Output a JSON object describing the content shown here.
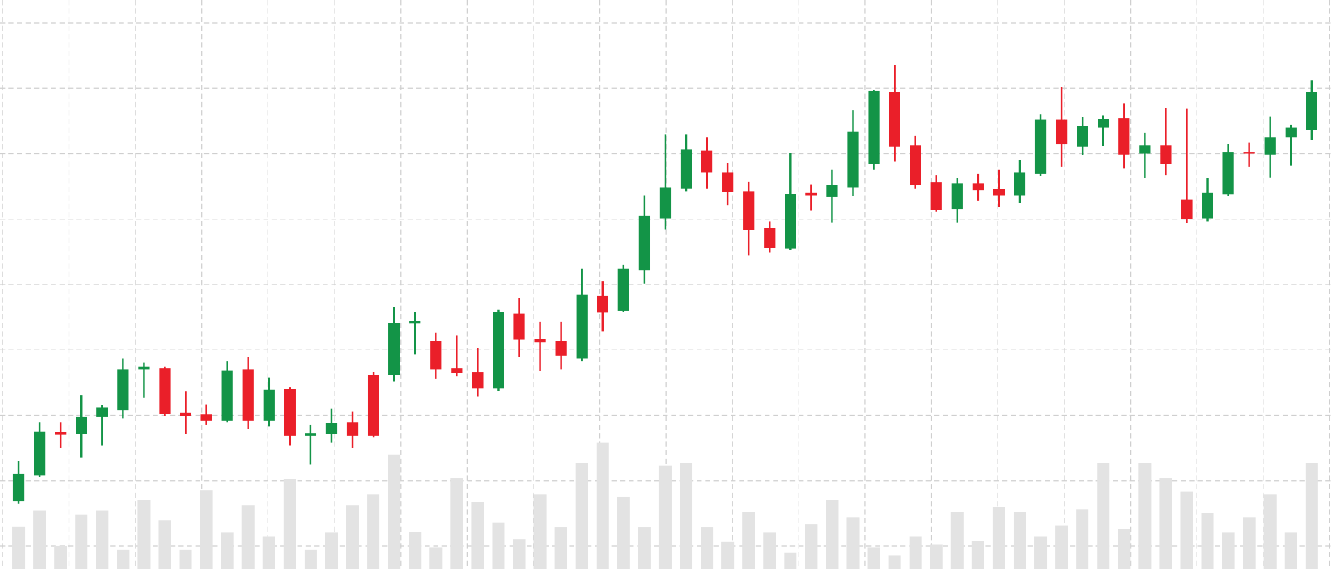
{
  "chart_data": {
    "type": "candlestick",
    "open": [
      80,
      110,
      161,
      159,
      179,
      187,
      235,
      236,
      184,
      182,
      175,
      235,
      175,
      212,
      157,
      159,
      173,
      228,
      228,
      289,
      268,
      236,
      232,
      213,
      301,
      271,
      268,
      248,
      322,
      304,
      352,
      413,
      448,
      493,
      467,
      445,
      402,
      377,
      443,
      438,
      449,
      477,
      562,
      499,
      455,
      424,
      454,
      447,
      440,
      465,
      529,
      497,
      520,
      531,
      489,
      499,
      435,
      413,
      441,
      491,
      488,
      508,
      517
    ],
    "high": [
      127,
      173,
      173,
      205,
      193,
      248,
      243,
      238,
      209,
      194,
      245,
      250,
      225,
      214,
      170,
      189,
      185,
      232,
      308,
      303,
      278,
      275,
      260,
      305,
      319,
      291,
      291,
      354,
      339,
      358,
      440,
      512,
      512,
      508,
      478,
      456,
      409,
      490,
      453,
      470,
      540,
      564,
      594,
      510,
      464,
      460,
      465,
      470,
      482,
      535,
      567,
      532,
      534,
      548,
      514,
      543,
      542,
      460,
      500,
      502,
      533,
      523,
      575
    ],
    "low": [
      77,
      108,
      143,
      131,
      145,
      177,
      202,
      180,
      159,
      170,
      173,
      165,
      168,
      145,
      123,
      149,
      143,
      155,
      221,
      253,
      224,
      227,
      203,
      210,
      250,
      233,
      235,
      245,
      280,
      303,
      336,
      400,
      445,
      448,
      428,
      369,
      373,
      375,
      422,
      408,
      439,
      470,
      480,
      448,
      421,
      408,
      434,
      426,
      431,
      463,
      474,
      487,
      498,
      472,
      460,
      464,
      407,
      409,
      439,
      474,
      461,
      475,
      505
    ],
    "close": [
      112,
      162,
      158,
      179,
      190,
      235,
      238,
      183,
      180,
      175,
      234,
      175,
      211,
      157,
      160,
      172,
      157,
      157,
      290,
      292,
      235,
      231,
      213,
      303,
      270,
      267,
      251,
      323,
      302,
      354,
      416,
      449,
      494,
      467,
      444,
      399,
      378,
      442,
      440,
      452,
      515,
      563,
      497,
      452,
      423,
      454,
      446,
      440,
      467,
      529,
      500,
      522,
      530,
      488,
      499,
      477,
      412,
      443,
      491,
      489,
      508,
      520,
      562
    ],
    "volume": [
      50,
      69,
      27,
      64,
      69,
      23,
      81,
      57,
      23,
      93,
      43,
      75,
      38,
      106,
      23,
      43,
      75,
      88,
      135,
      44,
      25,
      107,
      79,
      55,
      35,
      88,
      49,
      125,
      149,
      85,
      49,
      122,
      125,
      49,
      32,
      67,
      43,
      19,
      53,
      81,
      61,
      25,
      16,
      38,
      29,
      67,
      33,
      73,
      67,
      38,
      51,
      70,
      125,
      47,
      125,
      107,
      91,
      66,
      43,
      61,
      88,
      43,
      125
    ],
    "up_color": "#139447",
    "down_color": "#ea1f29",
    "volume_color": "#e3e3e3",
    "ylim": [
      0,
      670
    ],
    "yticks": [
      27,
      104,
      181,
      258,
      335,
      412,
      489,
      566,
      643
    ],
    "xlim": [
      -0.9,
      62.97
    ],
    "xticks": [
      -0.77,
      2.41,
      5.59,
      8.77,
      11.95,
      15.13,
      18.32,
      21.5,
      24.68,
      27.86,
      31.04,
      34.22,
      37.4,
      40.58,
      43.76,
      46.94,
      50.13,
      53.31,
      56.49,
      59.67,
      62.85
    ],
    "grid": true
  }
}
